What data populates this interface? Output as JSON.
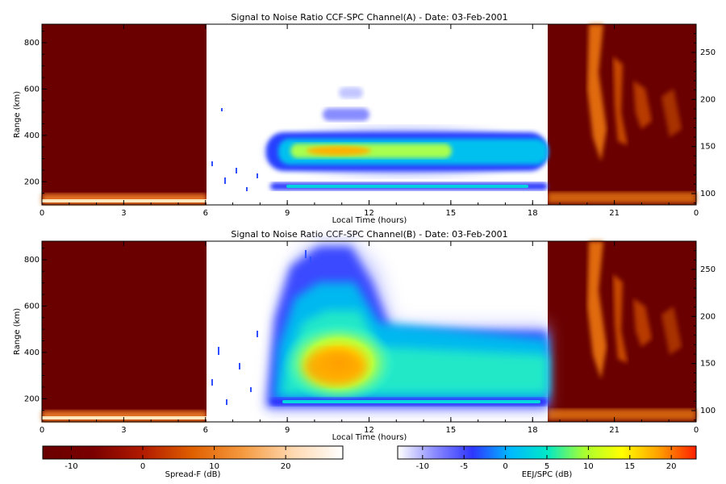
{
  "chart_data": [
    {
      "type": "heatmap",
      "title": "Signal to Noise Ratio CCF-SPC Channel(A) - Date: 03-Feb-2001",
      "xlabel": "Local Time (hours)",
      "ylabel": "Range (km)",
      "x_ticks": [
        "0",
        "3",
        "6",
        "9",
        "12",
        "15",
        "18",
        "21",
        "0"
      ],
      "x_tick_hours": [
        0,
        3,
        6,
        9,
        12,
        15,
        18,
        21,
        24
      ],
      "xlim": [
        0,
        24
      ],
      "ylim_left": [
        100,
        880
      ],
      "y_ticks_left": [
        "200",
        "400",
        "600",
        "800"
      ],
      "y_tick_values_left": [
        200,
        400,
        600,
        800
      ],
      "ylim_right": [
        88,
        280
      ],
      "y_ticks_right": [
        "100",
        "150",
        "200",
        "250"
      ],
      "y_tick_values_right": [
        100,
        150,
        200,
        250
      ],
      "spread_f_hours": [
        [
          0,
          6
        ],
        [
          18.5,
          24
        ]
      ],
      "ejj_spc_hours": [
        6,
        18.5
      ],
      "features": [
        {
          "kind": "f-layer-band",
          "t_start": 8.0,
          "t_end": 18.5,
          "range_center_km": 320,
          "peak_db": 13
        },
        {
          "kind": "band",
          "t_start": 9.5,
          "t_end": 11.8,
          "range_center_km": 460,
          "peak_db": -6
        },
        {
          "kind": "band",
          "t_start": 10.5,
          "t_end": 11.5,
          "range_center_km": 580,
          "peak_db": -8
        },
        {
          "kind": "e-layer-band",
          "t_start": 9.0,
          "t_end": 18.5,
          "range_center_km": 175,
          "peak_db": 3
        }
      ]
    },
    {
      "type": "heatmap",
      "title": "Signal to Noise Ratio CCF-SPC Channel(B) - Date: 03-Feb-2001",
      "xlabel": "Local Time (hours)",
      "ylabel": "Range (km)",
      "x_ticks": [
        "0",
        "3",
        "6",
        "9",
        "12",
        "15",
        "18",
        "21",
        "0"
      ],
      "x_tick_hours": [
        0,
        3,
        6,
        9,
        12,
        15,
        18,
        21,
        24
      ],
      "xlim": [
        0,
        24
      ],
      "ylim_left": [
        100,
        880
      ],
      "y_ticks_left": [
        "200",
        "400",
        "600",
        "800"
      ],
      "y_tick_values_left": [
        200,
        400,
        600,
        800
      ],
      "ylim_right": [
        88,
        280
      ],
      "y_ticks_right": [
        "100",
        "150",
        "200",
        "250"
      ],
      "y_tick_values_right": [
        100,
        150,
        200,
        250
      ],
      "spread_f_hours": [
        [
          0,
          6
        ],
        [
          18.5,
          24
        ]
      ],
      "ejj_spc_hours": [
        6,
        18.5
      ],
      "features": [
        {
          "kind": "broad-echo",
          "t_start": 8.0,
          "t_end": 18.5,
          "range_low_km": 170,
          "range_high_km": 560,
          "peak_db": 14
        },
        {
          "kind": "plume",
          "t_start": 9.0,
          "t_end": 12.5,
          "range_top_km": 880
        },
        {
          "kind": "e-layer-band",
          "t_start": 8.5,
          "t_end": 18.5,
          "range_center_km": 170,
          "peak_db": 3
        }
      ]
    }
  ],
  "colorbars": [
    {
      "label": "Spread-F (dB)",
      "ticks": [
        "-10",
        "0",
        "10",
        "20"
      ],
      "tick_values": [
        -10,
        0,
        10,
        20
      ],
      "range": [
        -14,
        28
      ],
      "colors": [
        "#6a0000",
        "#7a0000",
        "#b11a00",
        "#e06000",
        "#f59a40",
        "#ffd8b0",
        "#ffffff"
      ]
    },
    {
      "label": "EEJ/SPC (dB)",
      "ticks": [
        "-10",
        "-5",
        "0",
        "5",
        "10",
        "15",
        "20"
      ],
      "tick_values": [
        -10,
        -5,
        0,
        5,
        10,
        15,
        20
      ],
      "range": [
        -13,
        23
      ],
      "colors": [
        "#ffffff",
        "#8a8aff",
        "#2f36ff",
        "#00b8ff",
        "#00e8c8",
        "#a8ff30",
        "#ffff00",
        "#ffa000",
        "#ff2000"
      ]
    }
  ]
}
